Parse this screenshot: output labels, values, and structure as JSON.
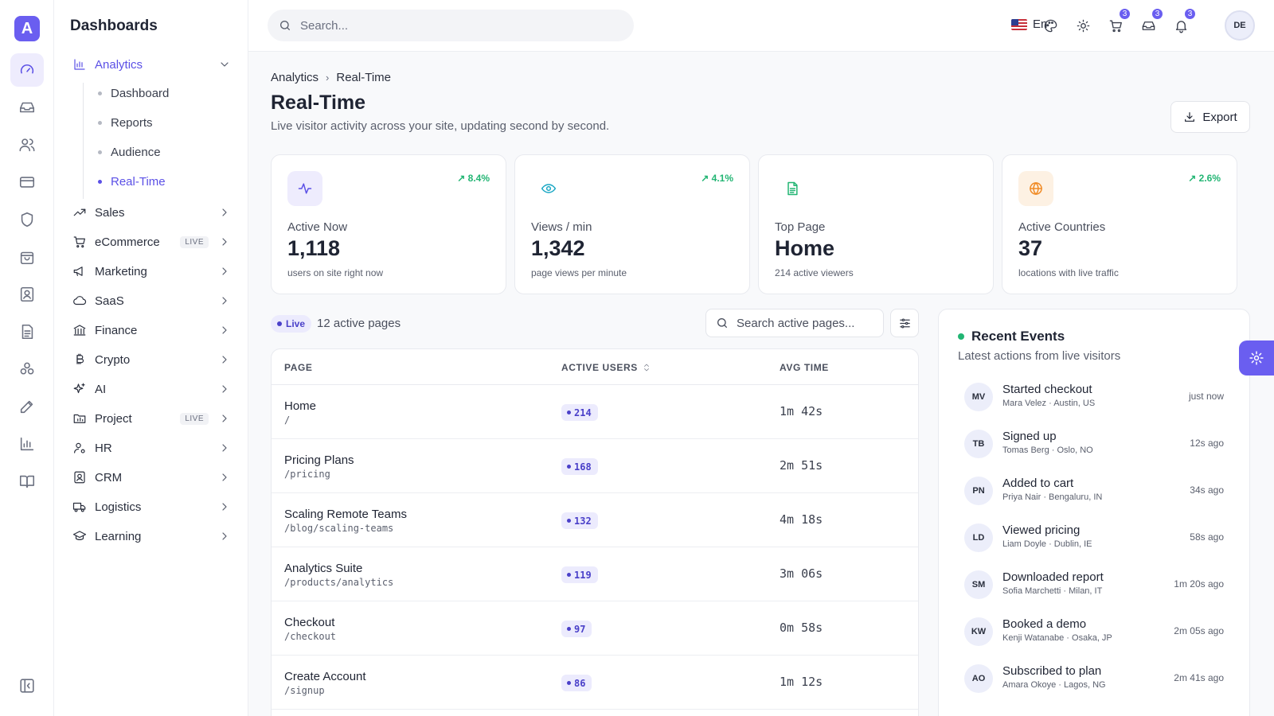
{
  "app": {
    "logo_letter": "A",
    "brand_color": "#6a5ef0"
  },
  "rail": {
    "icons": [
      "dashboard-icon",
      "inbox-icon",
      "users-icon",
      "card-icon",
      "shield-icon",
      "bag-icon",
      "contact-icon",
      "document-icon",
      "blocks-icon",
      "edit-icon",
      "bar-chart-icon",
      "book-icon"
    ],
    "active": "dashboard-icon"
  },
  "sidebar": {
    "title": "Dashboards",
    "analytics": {
      "label": "Analytics",
      "sub": [
        "Dashboard",
        "Reports",
        "Audience",
        "Real-Time"
      ],
      "active_sub": "Real-Time"
    },
    "items": [
      {
        "label": "Sales"
      },
      {
        "label": "eCommerce",
        "badge": "LIVE"
      },
      {
        "label": "Marketing"
      },
      {
        "label": "SaaS"
      },
      {
        "label": "Finance"
      },
      {
        "label": "Crypto"
      },
      {
        "label": "AI"
      },
      {
        "label": "Project",
        "badge": "LIVE"
      },
      {
        "label": "HR"
      },
      {
        "label": "CRM"
      },
      {
        "label": "Logistics"
      },
      {
        "label": "Learning"
      }
    ]
  },
  "topbar": {
    "search_placeholder": "Search...",
    "language": "En",
    "cart_count": "3",
    "inbox_count": "3",
    "notifications_count": "3",
    "avatar_initials": "DE"
  },
  "header": {
    "breadcrumb": [
      "Analytics",
      "Real-Time"
    ],
    "title": "Real-Time",
    "subtitle": "Live visitor activity across your site, updating second by second.",
    "export_label": "Export"
  },
  "stats": [
    {
      "icon": "activity-icon",
      "icon_color": "#5b50e6",
      "icon_bg": "#eeecfd",
      "trend": "8.4%",
      "label": "Active Now",
      "value": "1,118",
      "caption": "users on site right now"
    },
    {
      "icon": "eye-icon",
      "icon_color": "#1aa7c4",
      "icon_bg": "#ffffff",
      "trend": "4.1%",
      "label": "Views / min",
      "value": "1,342",
      "caption": "page views per minute"
    },
    {
      "icon": "file-icon",
      "icon_color": "#22b573",
      "icon_bg": "#ffffff",
      "trend": "",
      "label": "Top Page",
      "value": "Home",
      "caption": "214 active viewers"
    },
    {
      "icon": "globe-icon",
      "icon_color": "#f08a24",
      "icon_bg": "#fdf1e3",
      "trend": "2.6%",
      "label": "Active Countries",
      "value": "37",
      "caption": "locations with live traffic"
    }
  ],
  "pages": {
    "live_label": "Live",
    "count_label": "12 active pages",
    "search_placeholder": "Search active pages...",
    "columns": [
      "PAGE",
      "ACTIVE USERS",
      "AVG TIME"
    ],
    "rows": [
      {
        "name": "Home",
        "path": "/",
        "users": "214",
        "time": "1m 42s"
      },
      {
        "name": "Pricing Plans",
        "path": "/pricing",
        "users": "168",
        "time": "2m 51s"
      },
      {
        "name": "Scaling Remote Teams",
        "path": "/blog/scaling-teams",
        "users": "132",
        "time": "4m 18s"
      },
      {
        "name": "Analytics Suite",
        "path": "/products/analytics",
        "users": "119",
        "time": "3m 06s"
      },
      {
        "name": "Checkout",
        "path": "/checkout",
        "users": "97",
        "time": "0m 58s"
      },
      {
        "name": "Create Account",
        "path": "/signup",
        "users": "86",
        "time": "1m 12s"
      }
    ]
  },
  "events": {
    "title": "Recent Events",
    "subtitle": "Latest actions from live visitors",
    "items": [
      {
        "initials": "MV",
        "title": "Started checkout",
        "meta": "Mara Velez · Austin, US",
        "time": "just now"
      },
      {
        "initials": "TB",
        "title": "Signed up",
        "meta": "Tomas Berg · Oslo, NO",
        "time": "12s ago"
      },
      {
        "initials": "PN",
        "title": "Added to cart",
        "meta": "Priya Nair · Bengaluru, IN",
        "time": "34s ago"
      },
      {
        "initials": "LD",
        "title": "Viewed pricing",
        "meta": "Liam Doyle · Dublin, IE",
        "time": "58s ago"
      },
      {
        "initials": "SM",
        "title": "Downloaded report",
        "meta": "Sofia Marchetti · Milan, IT",
        "time": "1m 20s ago"
      },
      {
        "initials": "KW",
        "title": "Booked a demo",
        "meta": "Kenji Watanabe · Osaka, JP",
        "time": "2m 05s ago"
      },
      {
        "initials": "AO",
        "title": "Subscribed to plan",
        "meta": "Amara Okoye · Lagos, NG",
        "time": "2m 41s ago"
      }
    ]
  }
}
